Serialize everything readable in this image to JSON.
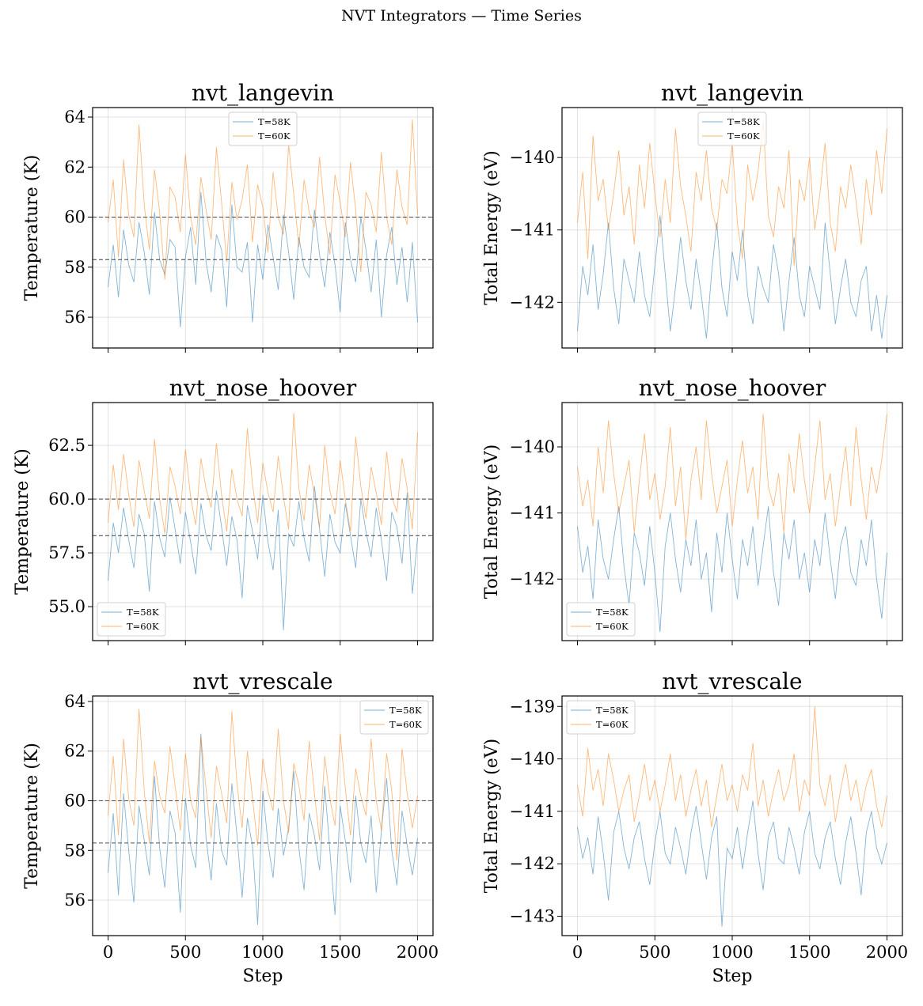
{
  "suptitle": "NVT Integrators — Time Series",
  "colors": {
    "T=58K": "#1f77b4",
    "T=60K": "#ff7f0e",
    "reference": "#555555"
  },
  "chart_data": [
    {
      "type": "line",
      "title": "nvt_langevin",
      "xlabel": "",
      "ylabel": "Temperature (K)",
      "xlim": [
        -100,
        2100
      ],
      "ylim": [
        54.77,
        64.38
      ],
      "xticks": [
        0,
        500,
        1000,
        1500,
        2000
      ],
      "xticklabels": [
        "",
        "",
        "",
        "",
        ""
      ],
      "yticks": [
        56,
        58,
        60,
        62,
        64
      ],
      "yticklabels": [
        "56",
        "58",
        "60",
        "62",
        "64"
      ],
      "reference_lines": [
        60,
        58.3
      ],
      "legend": "upper center",
      "grid": true,
      "x_range": [
        0,
        2000
      ],
      "series": [
        {
          "name": "T=58K",
          "values": [
            57.2,
            58.9,
            56.8,
            59.5,
            58.1,
            57.4,
            59.8,
            58.6,
            56.9,
            60.2,
            58.3,
            57.7,
            59.1,
            58.8,
            55.6,
            58.4,
            59.6,
            57.3,
            61.0,
            58.2,
            57.0,
            59.3,
            58.7,
            56.4,
            60.5,
            58.0,
            57.8,
            59.0,
            55.8,
            58.9,
            57.5,
            59.7,
            58.4,
            57.1,
            60.1,
            58.6,
            56.7,
            59.2,
            58.0,
            57.6,
            60.3,
            58.5,
            57.2,
            59.4,
            58.1,
            56.2,
            59.8,
            58.3,
            57.4,
            60.0,
            58.7,
            57.0,
            59.1,
            56.0,
            58.5,
            59.6,
            57.3,
            58.8,
            56.6,
            59.0,
            55.8
          ]
        },
        {
          "name": "T=60K",
          "values": [
            59.8,
            61.5,
            58.4,
            62.3,
            60.1,
            59.2,
            63.7,
            60.5,
            58.7,
            61.9,
            60.2,
            57.5,
            61.2,
            60.8,
            59.4,
            62.5,
            60.0,
            58.9,
            61.6,
            60.3,
            59.1,
            62.8,
            60.6,
            58.2,
            61.4,
            59.9,
            60.7,
            62.1,
            59.0,
            61.3,
            60.4,
            58.6,
            61.8,
            60.0,
            59.3,
            62.9,
            60.9,
            58.8,
            61.5,
            60.2,
            59.6,
            62.4,
            60.1,
            58.5,
            61.7,
            60.6,
            59.2,
            62.2,
            60.3,
            57.8,
            61.0,
            60.5,
            59.4,
            62.6,
            60.0,
            58.9,
            61.9,
            60.4,
            59.7,
            63.9,
            60.1
          ]
        }
      ]
    },
    {
      "type": "line",
      "title": "nvt_langevin",
      "xlabel": "",
      "ylabel": "Total Energy (eV)",
      "xlim": [
        -100,
        2100
      ],
      "ylim": [
        -142.63,
        -139.31
      ],
      "xticks": [
        0,
        500,
        1000,
        1500,
        2000
      ],
      "xticklabels": [
        "",
        "",
        "",
        "",
        ""
      ],
      "yticks": [
        -142,
        -141,
        -140
      ],
      "yticklabels": [
        "−142",
        "−141",
        "−140"
      ],
      "reference_lines": [],
      "legend": "upper center",
      "grid": true,
      "x_range": [
        0,
        2000
      ],
      "series": [
        {
          "name": "T=58K",
          "values": [
            -142.4,
            -141.5,
            -141.9,
            -141.2,
            -142.1,
            -141.6,
            -140.9,
            -141.8,
            -142.3,
            -141.4,
            -141.7,
            -142.0,
            -141.3,
            -141.9,
            -142.2,
            -141.5,
            -140.8,
            -141.6,
            -142.4,
            -141.8,
            -141.1,
            -141.7,
            -142.1,
            -141.4,
            -141.9,
            -142.5,
            -141.6,
            -140.9,
            -141.8,
            -142.2,
            -141.3,
            -141.7,
            -141.0,
            -141.9,
            -142.3,
            -141.5,
            -141.8,
            -142.0,
            -141.2,
            -141.6,
            -142.4,
            -141.7,
            -141.1,
            -141.9,
            -142.2,
            -141.5,
            -141.8,
            -142.1,
            -140.9,
            -141.6,
            -142.3,
            -141.8,
            -141.4,
            -142.0,
            -142.2,
            -141.7,
            -141.5,
            -142.4,
            -141.9,
            -142.5,
            -141.9
          ]
        },
        {
          "name": "T=60K",
          "values": [
            -140.9,
            -140.2,
            -141.4,
            -139.7,
            -140.6,
            -140.3,
            -141.0,
            -140.5,
            -139.9,
            -140.8,
            -140.4,
            -141.2,
            -140.1,
            -140.7,
            -139.8,
            -140.5,
            -141.1,
            -140.3,
            -140.9,
            -139.6,
            -140.4,
            -140.8,
            -141.3,
            -140.2,
            -140.6,
            -139.9,
            -140.7,
            -141.0,
            -140.3,
            -140.5,
            -139.8,
            -140.9,
            -141.4,
            -140.1,
            -140.6,
            -140.2,
            -139.5,
            -140.8,
            -141.1,
            -140.4,
            -140.7,
            -139.9,
            -141.5,
            -140.3,
            -140.6,
            -140.0,
            -141.0,
            -140.5,
            -139.8,
            -140.9,
            -141.3,
            -140.4,
            -140.7,
            -140.1,
            -140.6,
            -141.2,
            -140.3,
            -140.8,
            -139.9,
            -140.5,
            -139.6
          ]
        }
      ]
    },
    {
      "type": "line",
      "title": "nvt_nose_hoover",
      "xlabel": "",
      "ylabel": "Temperature (K)",
      "xlim": [
        -100,
        2100
      ],
      "ylim": [
        53.42,
        64.49
      ],
      "xticks": [
        0,
        500,
        1000,
        1500,
        2000
      ],
      "xticklabels": [
        "",
        "",
        "",
        "",
        ""
      ],
      "yticks": [
        55,
        57.5,
        60,
        62.5
      ],
      "yticklabels": [
        "55.0",
        "57.5",
        "60.0",
        "62.5"
      ],
      "reference_lines": [
        60,
        58.3
      ],
      "legend": "lower left",
      "grid": true,
      "x_range": [
        0,
        2000
      ],
      "series": [
        {
          "name": "T=58K",
          "values": [
            56.2,
            58.9,
            57.5,
            59.6,
            58.1,
            56.8,
            59.3,
            58.4,
            55.7,
            59.9,
            58.2,
            57.3,
            60.1,
            58.6,
            57.0,
            59.4,
            58.0,
            56.5,
            59.8,
            58.3,
            57.6,
            60.4,
            58.7,
            56.9,
            59.2,
            58.1,
            55.4,
            59.7,
            58.5,
            57.2,
            60.2,
            58.0,
            56.7,
            59.5,
            53.9,
            58.4,
            57.8,
            59.9,
            58.2,
            57.1,
            60.6,
            58.6,
            56.4,
            59.3,
            58.0,
            57.5,
            59.8,
            58.3,
            56.8,
            60.0,
            58.5,
            57.3,
            59.6,
            58.1,
            56.2,
            59.4,
            58.7,
            57.0,
            60.3,
            55.6,
            58.2
          ]
        },
        {
          "name": "T=60K",
          "values": [
            58.9,
            61.6,
            59.5,
            62.1,
            60.2,
            58.7,
            61.8,
            60.4,
            59.1,
            62.8,
            60.0,
            58.4,
            61.5,
            60.6,
            59.3,
            62.3,
            60.1,
            58.8,
            61.9,
            60.5,
            59.6,
            62.6,
            60.2,
            58.5,
            61.4,
            60.0,
            59.2,
            63.3,
            60.7,
            58.9,
            61.7,
            60.3,
            59.4,
            62.0,
            60.1,
            58.6,
            64.0,
            60.5,
            59.0,
            61.6,
            60.2,
            58.7,
            62.5,
            60.4,
            59.3,
            61.8,
            60.0,
            58.5,
            62.9,
            60.6,
            59.1,
            61.5,
            60.3,
            58.8,
            62.2,
            60.1,
            59.4,
            61.9,
            60.5,
            58.6,
            63.1
          ]
        }
      ]
    },
    {
      "type": "line",
      "title": "nvt_nose_hoover",
      "xlabel": "",
      "ylabel": "Total Energy (eV)",
      "xlim": [
        -100,
        2100
      ],
      "ylim": [
        -142.93,
        -139.33
      ],
      "xticks": [
        0,
        500,
        1000,
        1500,
        2000
      ],
      "xticklabels": [
        "",
        "",
        "",
        "",
        ""
      ],
      "yticks": [
        -142,
        -141,
        -140
      ],
      "yticklabels": [
        "−142",
        "−141",
        "−140"
      ],
      "reference_lines": [],
      "legend": "lower left",
      "grid": true,
      "x_range": [
        0,
        2000
      ],
      "series": [
        {
          "name": "T=58K",
          "values": [
            -141.2,
            -141.9,
            -141.5,
            -142.3,
            -141.1,
            -141.7,
            -142.0,
            -141.4,
            -140.9,
            -141.8,
            -142.4,
            -141.3,
            -141.6,
            -142.1,
            -141.2,
            -141.9,
            -142.8,
            -141.5,
            -141.0,
            -141.7,
            -142.2,
            -141.4,
            -141.8,
            -141.1,
            -142.0,
            -141.6,
            -142.5,
            -141.3,
            -141.9,
            -141.0,
            -141.7,
            -142.3,
            -141.4,
            -141.8,
            -141.2,
            -142.1,
            -141.5,
            -140.9,
            -141.9,
            -142.4,
            -141.3,
            -141.7,
            -141.1,
            -142.0,
            -141.6,
            -142.2,
            -141.4,
            -141.8,
            -141.0,
            -141.7,
            -142.3,
            -141.5,
            -141.2,
            -141.9,
            -142.1,
            -141.4,
            -141.8,
            -141.1,
            -142.0,
            -142.6,
            -141.6
          ]
        },
        {
          "name": "T=60K",
          "values": [
            -140.3,
            -140.9,
            -140.5,
            -141.2,
            -140.0,
            -140.7,
            -139.6,
            -140.4,
            -141.0,
            -140.6,
            -140.2,
            -141.3,
            -140.5,
            -139.8,
            -140.8,
            -140.4,
            -141.1,
            -140.6,
            -139.7,
            -140.9,
            -140.3,
            -141.4,
            -140.5,
            -140.0,
            -140.8,
            -139.6,
            -140.4,
            -141.0,
            -140.6,
            -140.2,
            -141.2,
            -140.5,
            -139.9,
            -140.7,
            -140.3,
            -141.1,
            -139.5,
            -140.6,
            -140.9,
            -140.4,
            -141.3,
            -140.1,
            -140.7,
            -139.8,
            -140.5,
            -141.0,
            -140.3,
            -139.6,
            -140.8,
            -140.4,
            -141.2,
            -140.6,
            -140.0,
            -140.9,
            -139.7,
            -140.5,
            -141.1,
            -140.3,
            -140.7,
            -140.2,
            -139.5
          ]
        }
      ]
    },
    {
      "type": "line",
      "title": "nvt_vrescale",
      "xlabel": "Step",
      "ylabel": "Temperature (K)",
      "xlim": [
        -100,
        2100
      ],
      "ylim": [
        54.57,
        64.22
      ],
      "xticks": [
        0,
        500,
        1000,
        1500,
        2000
      ],
      "xticklabels": [
        "0",
        "500",
        "1000",
        "1500",
        "2000"
      ],
      "yticks": [
        56,
        58,
        60,
        62,
        64
      ],
      "yticklabels": [
        "56",
        "58",
        "60",
        "62",
        "64"
      ],
      "reference_lines": [
        60,
        58.3
      ],
      "legend": "upper right",
      "grid": true,
      "x_range": [
        0,
        2000
      ],
      "series": [
        {
          "name": "T=58K",
          "values": [
            57.1,
            59.5,
            56.2,
            60.3,
            58.0,
            55.9,
            59.8,
            58.4,
            57.0,
            61.0,
            58.1,
            56.5,
            59.6,
            58.7,
            55.5,
            60.1,
            58.2,
            57.3,
            62.7,
            58.5,
            56.8,
            59.9,
            58.0,
            57.4,
            60.7,
            58.6,
            56.1,
            59.3,
            58.2,
            55.0,
            60.4,
            58.3,
            56.9,
            59.7,
            57.8,
            58.9,
            61.2,
            58.1,
            56.4,
            59.5,
            58.6,
            57.2,
            60.6,
            58.0,
            55.4,
            59.8,
            58.4,
            56.7,
            60.2,
            58.3,
            57.5,
            59.4,
            56.3,
            58.8,
            60.9,
            58.0,
            56.6,
            59.6,
            58.2,
            57.0,
            58.5
          ]
        },
        {
          "name": "T=60K",
          "values": [
            59.4,
            61.8,
            58.6,
            62.5,
            60.1,
            59.0,
            63.7,
            60.4,
            58.3,
            61.6,
            60.2,
            59.5,
            62.2,
            60.6,
            58.8,
            61.9,
            60.0,
            59.3,
            62.6,
            60.5,
            58.5,
            61.4,
            60.3,
            59.1,
            63.6,
            60.7,
            58.9,
            62.0,
            60.1,
            58.2,
            61.7,
            60.4,
            59.6,
            62.9,
            60.0,
            58.7,
            61.5,
            60.6,
            59.2,
            62.4,
            60.3,
            58.4,
            61.8,
            60.1,
            59.0,
            62.7,
            60.5,
            58.6,
            61.3,
            60.2,
            59.4,
            62.5,
            60.0,
            58.8,
            61.9,
            60.4,
            57.6,
            62.1,
            60.3,
            58.9,
            60.2
          ]
        }
      ]
    },
    {
      "type": "line",
      "title": "nvt_vrescale",
      "xlabel": "Step",
      "ylabel": "Total Energy (eV)",
      "xlim": [
        -100,
        2100
      ],
      "ylim": [
        -143.37,
        -138.8
      ],
      "xticks": [
        0,
        500,
        1000,
        1500,
        2000
      ],
      "xticklabels": [
        "0",
        "500",
        "1000",
        "1500",
        "2000"
      ],
      "yticks": [
        -143,
        -142,
        -141,
        -140,
        -139
      ],
      "yticklabels": [
        "−143",
        "−142",
        "−141",
        "−140",
        "−139"
      ],
      "reference_lines": [],
      "legend": "upper left",
      "grid": true,
      "x_range": [
        0,
        2000
      ],
      "series": [
        {
          "name": "T=58K",
          "values": [
            -141.3,
            -141.9,
            -141.5,
            -142.2,
            -141.1,
            -141.8,
            -142.7,
            -141.4,
            -141.0,
            -141.7,
            -142.1,
            -141.5,
            -141.2,
            -141.9,
            -142.4,
            -141.6,
            -141.0,
            -141.8,
            -142.0,
            -141.3,
            -141.7,
            -142.2,
            -141.4,
            -140.9,
            -141.6,
            -142.3,
            -141.5,
            -141.1,
            -143.2,
            -141.7,
            -141.9,
            -141.3,
            -142.1,
            -141.4,
            -140.8,
            -141.8,
            -142.5,
            -141.5,
            -141.2,
            -141.9,
            -142.0,
            -141.3,
            -141.7,
            -142.2,
            -141.4,
            -141.0,
            -141.8,
            -142.1,
            -141.5,
            -141.2,
            -141.9,
            -142.4,
            -141.6,
            -141.1,
            -141.8,
            -142.6,
            -141.4,
            -141.0,
            -141.7,
            -142.0,
            -141.6
          ]
        },
        {
          "name": "T=60K",
          "values": [
            -140.5,
            -141.1,
            -139.8,
            -140.6,
            -140.2,
            -140.9,
            -139.9,
            -140.4,
            -141.0,
            -140.6,
            -140.3,
            -141.2,
            -140.7,
            -140.1,
            -140.8,
            -140.4,
            -141.0,
            -140.5,
            -139.9,
            -140.8,
            -140.3,
            -141.1,
            -140.6,
            -140.2,
            -140.9,
            -140.4,
            -141.3,
            -140.7,
            -140.1,
            -140.8,
            -140.5,
            -141.0,
            -140.3,
            -140.6,
            -139.7,
            -140.9,
            -140.4,
            -141.1,
            -140.6,
            -140.2,
            -140.8,
            -140.5,
            -139.9,
            -141.0,
            -140.4,
            -140.7,
            -139.0,
            -140.5,
            -140.9,
            -140.3,
            -141.2,
            -140.6,
            -140.1,
            -140.8,
            -140.4,
            -141.0,
            -140.5,
            -140.2,
            -140.9,
            -141.3,
            -140.7
          ]
        }
      ]
    }
  ]
}
